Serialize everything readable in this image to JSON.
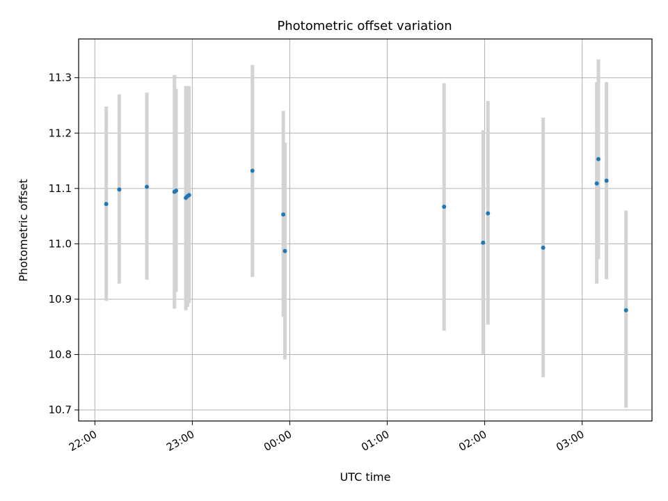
{
  "chart_data": {
    "type": "scatter",
    "title": "Photometric offset variation",
    "xlabel": "UTC time",
    "ylabel": "Photometric offset",
    "x_axis": {
      "kind": "time",
      "range": [
        "21:50",
        "03:43"
      ],
      "ticks": [
        "22:00",
        "23:00",
        "00:00",
        "01:00",
        "02:00",
        "03:00"
      ]
    },
    "y_axis": {
      "range": [
        10.68,
        11.37
      ],
      "ticks": [
        "10.7",
        "10.8",
        "10.9",
        "11.0",
        "11.1",
        "11.2",
        "11.3"
      ]
    },
    "grid": true,
    "colors": {
      "points": "#1f77b4",
      "errorbars": "#d3d3d3",
      "grid": "#b0b0b0"
    },
    "points": [
      {
        "x": "22:07",
        "y": 11.072,
        "err": [
          10.897,
          11.248
        ]
      },
      {
        "x": "22:15",
        "y": 11.098,
        "err": [
          10.928,
          11.27
        ]
      },
      {
        "x": "22:32",
        "y": 11.103,
        "err": [
          10.935,
          11.273
        ]
      },
      {
        "x": "22:49",
        "y": 11.094,
        "err": [
          10.883,
          11.305
        ]
      },
      {
        "x": "22:50",
        "y": 11.096,
        "err": [
          10.913,
          11.28
        ]
      },
      {
        "x": "22:56",
        "y": 11.083,
        "err": [
          10.88,
          11.285
        ]
      },
      {
        "x": "22:57",
        "y": 11.086,
        "err": [
          10.886,
          11.285
        ]
      },
      {
        "x": "22:58",
        "y": 11.088,
        "err": [
          10.893,
          11.285
        ]
      },
      {
        "x": "23:37",
        "y": 11.132,
        "err": [
          10.94,
          11.323
        ]
      },
      {
        "x": "23:56",
        "y": 11.053,
        "err": [
          10.868,
          11.24
        ]
      },
      {
        "x": "23:57",
        "y": 10.987,
        "err": [
          10.791,
          11.183
        ]
      },
      {
        "x": "01:35",
        "y": 11.067,
        "err": [
          10.843,
          11.29
        ]
      },
      {
        "x": "01:59",
        "y": 11.002,
        "err": [
          10.801,
          11.205
        ]
      },
      {
        "x": "02:02",
        "y": 11.055,
        "err": [
          10.854,
          11.258
        ]
      },
      {
        "x": "02:36",
        "y": 10.993,
        "err": [
          10.759,
          11.228
        ]
      },
      {
        "x": "03:09",
        "y": 11.109,
        "err": [
          10.928,
          11.292
        ]
      },
      {
        "x": "03:10",
        "y": 11.153,
        "err": [
          10.972,
          11.333
        ]
      },
      {
        "x": "03:15",
        "y": 11.114,
        "err": [
          10.936,
          11.292
        ]
      },
      {
        "x": "03:27",
        "y": 10.88,
        "err": [
          10.704,
          11.06
        ]
      }
    ]
  }
}
